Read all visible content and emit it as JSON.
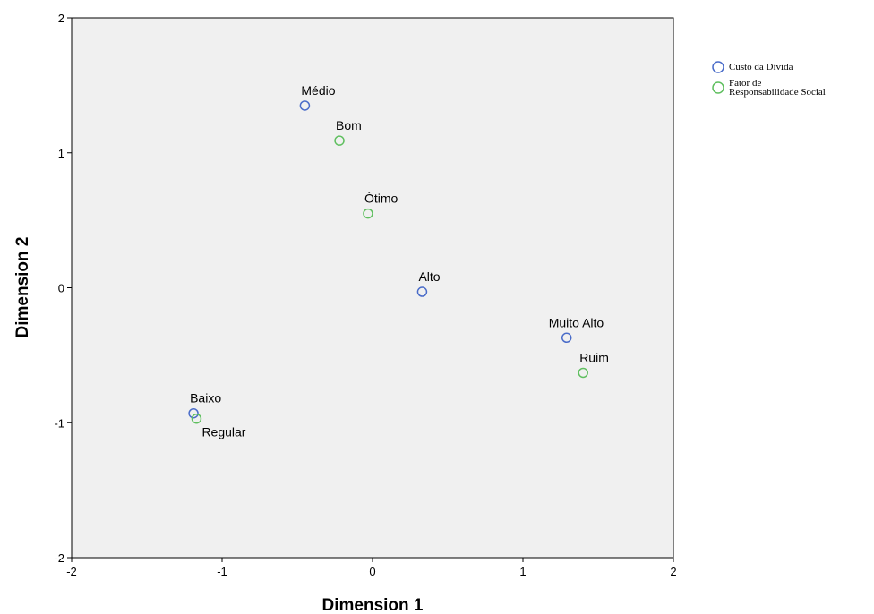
{
  "chart_data": {
    "type": "scatter",
    "xlabel": "Dimension 1",
    "ylabel": "Dimension 2",
    "xlim": [
      -2,
      2
    ],
    "ylim": [
      -2,
      2
    ],
    "xticks": [
      -2,
      -1,
      0,
      1,
      2
    ],
    "yticks": [
      -2,
      -1,
      0,
      1,
      2
    ],
    "grid": false,
    "legend_position": "right",
    "background_color": "#f0f0f0",
    "series": [
      {
        "name": "Custo da Dívida",
        "color": "#4a6cc9",
        "points": [
          {
            "label": "Médio",
            "x": -0.45,
            "y": 1.35
          },
          {
            "label": "Alto",
            "x": 0.33,
            "y": -0.03
          },
          {
            "label": "Muito Alto",
            "x": 1.29,
            "y": -0.37
          },
          {
            "label": "Baixo",
            "x": -1.19,
            "y": -0.93
          }
        ]
      },
      {
        "name": "Fator de Responsabilidade Social",
        "name_lines": [
          "Fator de",
          "Responsabilidade Social"
        ],
        "color": "#5fbf5f",
        "points": [
          {
            "label": "Bom",
            "x": -0.22,
            "y": 1.09
          },
          {
            "label": "Ótimo",
            "x": -0.03,
            "y": 0.55
          },
          {
            "label": "Ruim",
            "x": 1.4,
            "y": -0.63
          },
          {
            "label": "Regular",
            "x": -1.17,
            "y": -0.97
          }
        ]
      }
    ]
  }
}
